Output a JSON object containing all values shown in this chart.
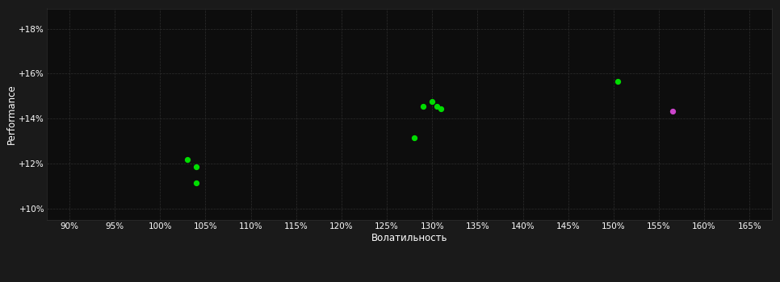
{
  "xlabel": "Волатильность",
  "ylabel": "Performance",
  "background_color": "#1a1a1a",
  "plot_bg_color": "#0d0d0d",
  "grid_color": "#2e2e2e",
  "text_color": "#ffffff",
  "green_points": [
    [
      1.03,
      12.2
    ],
    [
      1.04,
      11.85
    ],
    [
      1.04,
      11.15
    ],
    [
      1.28,
      13.15
    ],
    [
      1.29,
      14.55
    ],
    [
      1.3,
      14.75
    ],
    [
      1.305,
      14.55
    ],
    [
      1.31,
      14.45
    ],
    [
      1.505,
      15.65
    ]
  ],
  "purple_points": [
    [
      1.565,
      14.35
    ]
  ],
  "green_color": "#00dd00",
  "purple_color": "#cc44cc",
  "xlim": [
    0.875,
    1.675
  ],
  "ylim": [
    9.5,
    18.9
  ],
  "xtick_values": [
    0.9,
    0.95,
    1.0,
    1.05,
    1.1,
    1.15,
    1.2,
    1.25,
    1.3,
    1.35,
    1.4,
    1.45,
    1.5,
    1.55,
    1.6,
    1.65
  ],
  "ytick_values": [
    10,
    12,
    14,
    16,
    18
  ],
  "marker_size": 18
}
